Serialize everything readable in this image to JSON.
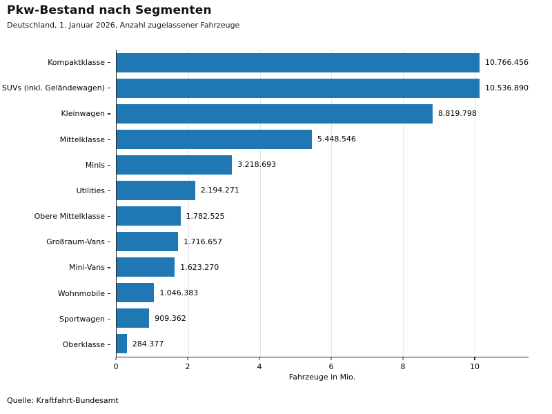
{
  "header": {
    "title": "Pkw-Bestand nach Segmenten",
    "subtitle": "Deutschland, 1. Januar 2026, Anzahl zugelassener Fahrzeuge"
  },
  "footer": {
    "source": "Quelle: Kraftfahrt-Bundesamt"
  },
  "chart_data": {
    "type": "bar",
    "orientation": "horizontal",
    "title": "Pkw-Bestand nach Segmenten",
    "subtitle": "Deutschland, 1. Januar 2026, Anzahl zugelassener Fahrzeuge",
    "categories": [
      "Kompaktklasse",
      "SUVs (inkl. Geländewagen)",
      "Kleinwagen",
      "Mittelklasse",
      "Minis",
      "Utilities",
      "Obere Mittelklasse",
      "Großraum-Vans",
      "Mini-Vans",
      "Wohnmobile",
      "Sportwagen",
      "Oberklasse"
    ],
    "values": [
      10766456,
      10536890,
      8819798,
      5448546,
      3218693,
      2194271,
      1782525,
      1716657,
      1623270,
      1046383,
      909362,
      284377
    ],
    "value_labels": [
      "10.766.456",
      "10.536.890",
      "8.819.798",
      "5.448.546",
      "3.218.693",
      "2.194.271",
      "1.782.525",
      "1.716.657",
      "1.623.270",
      "1.046.383",
      "909.362",
      "284.377"
    ],
    "xlabel": "Fahrzeuge in Mio.",
    "ylabel": "",
    "xlim": [
      0,
      11.5
    ],
    "xticks": [
      0,
      2,
      4,
      6,
      8,
      10
    ],
    "grid": "vertical-light",
    "legend": "none",
    "bar_color": "#1f77b4",
    "source": "Quelle: Kraftfahrt-Bundesamt"
  }
}
